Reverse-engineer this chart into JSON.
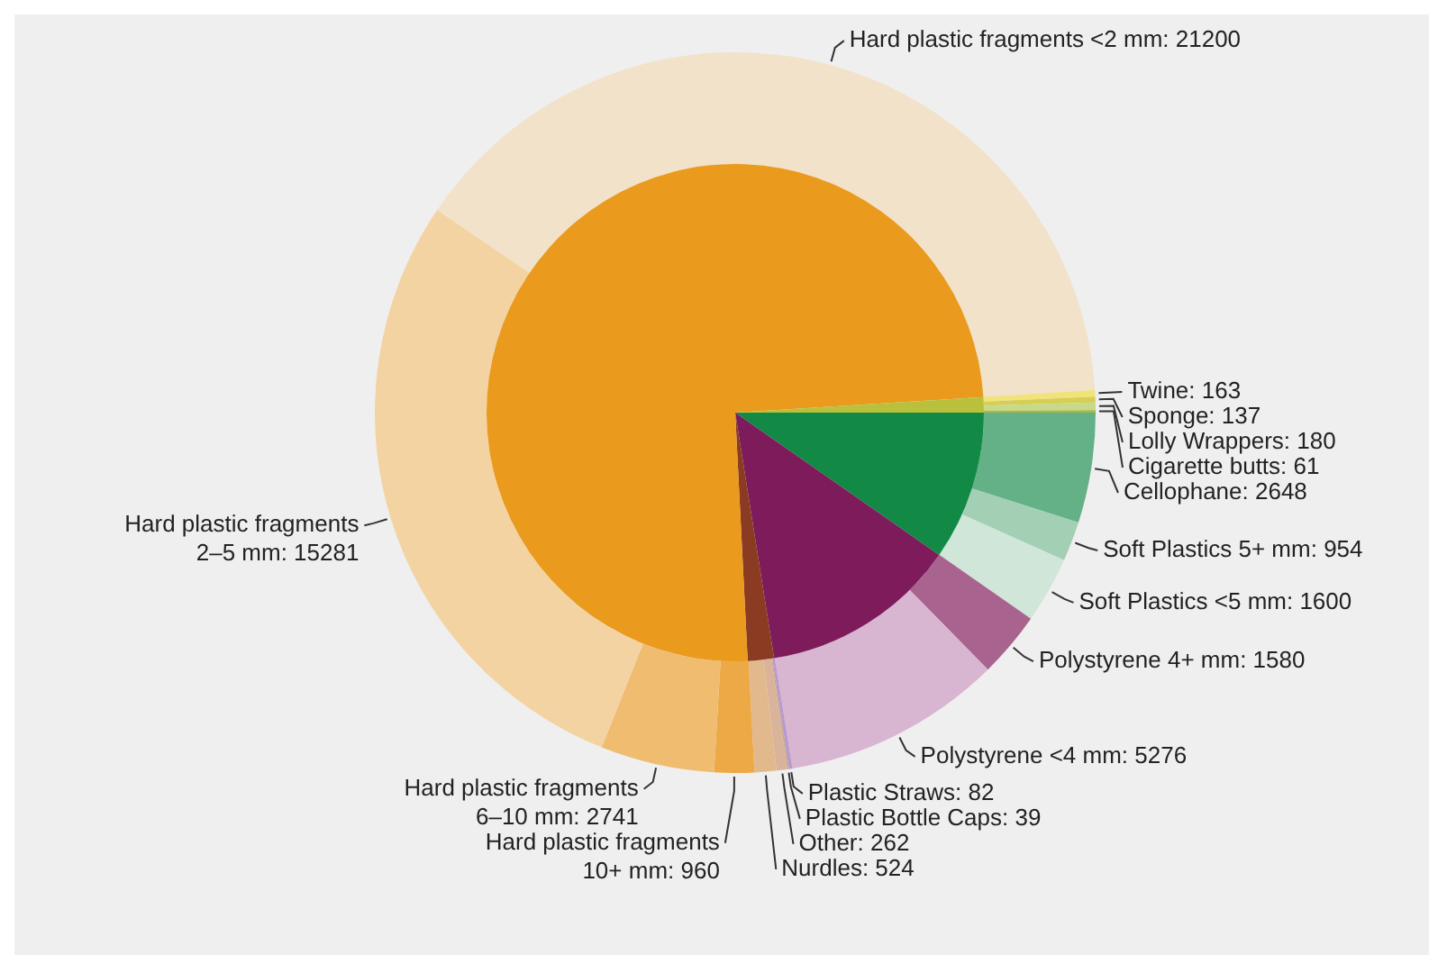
{
  "chart_data": [
    {
      "type": "pie",
      "categories": [
        null,
        null,
        null,
        null,
        null
      ],
      "values": [
        9.7,
        12.8,
        1.7,
        74.8,
        1.0
      ],
      "colors": [
        "#128a45",
        "#7e1b5b",
        "#8a3b22",
        "#ea9a1d",
        "#b9c13c"
      ]
    },
    {
      "type": "donut",
      "categories": [
        "Cellophane",
        "Soft Plastics 5+ mm",
        "Soft Plastics <5 mm",
        "Polystyrene 4+ mm",
        "Polystyrene <4 mm",
        "Plastic Straws",
        "Plastic Bottle Caps",
        "Other",
        "Nurdles",
        "Hard plastic fragments 10+ mm",
        "Hard plastic fragments 6–10 mm",
        "Hard plastic fragments 2–5 mm",
        "Hard plastic fragments <2 mm",
        "Twine",
        "Sponge",
        "Lolly Wrappers",
        "Cigarette butts"
      ],
      "values": [
        2648,
        954,
        1600,
        1580,
        5276,
        82,
        39,
        262,
        524,
        960,
        2741,
        15281,
        21200,
        163,
        137,
        180,
        61
      ],
      "value_labels": [
        ": 2648",
        ": 954",
        ": 1600",
        ": 1580",
        ": 5276",
        ": 82",
        ": 39",
        ": 262",
        ": 524",
        ": 960",
        ": 2741",
        ": 15281",
        ": 21200",
        ": 163",
        ": 137",
        ": 180",
        ": 61"
      ],
      "colors": [
        "#64b187",
        "#a3cfb5",
        "#cfe6d8",
        "#a9638f",
        "#d8b5d0",
        "#b79ad0",
        "#c9a48a",
        "#d9b49a",
        "#e2b98c",
        "#eda946",
        "#efbc70",
        "#f4d3a3",
        "#f1e2c9",
        "#f1e37a",
        "#d6cf55",
        "#c9d98a",
        "#a7b944"
      ]
    }
  ]
}
